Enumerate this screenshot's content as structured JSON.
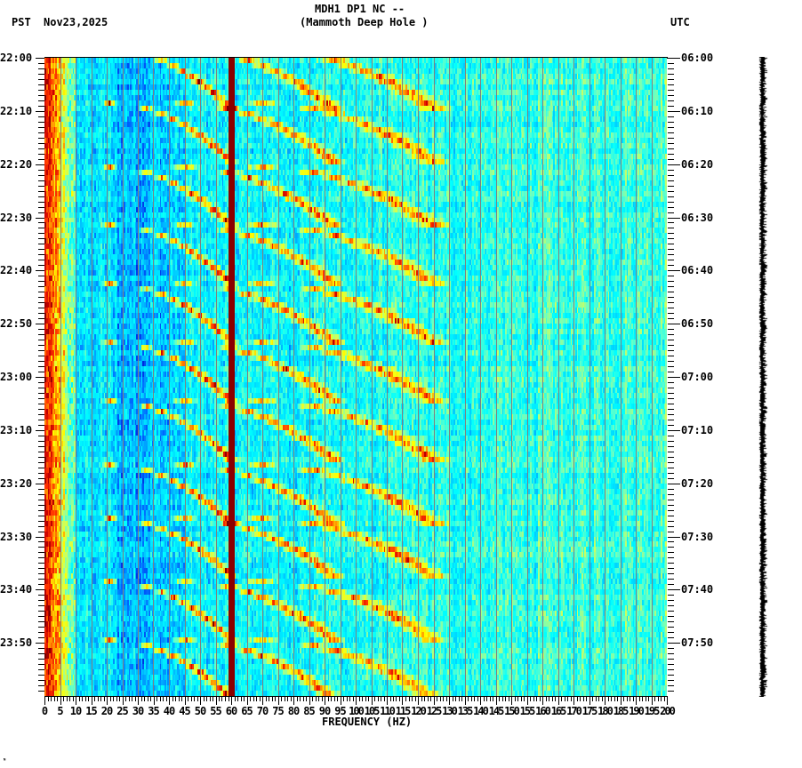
{
  "header": {
    "title_line1": "MDH1 DP1 NC --",
    "title_line2": "(Mammoth Deep Hole )",
    "left_timezone": "PST",
    "date": "Nov23,2025",
    "right_timezone": "UTC"
  },
  "footer": {
    "corner_mark": "ᴺ"
  },
  "chart_data": {
    "type": "heatmap",
    "subtype": "spectrogram",
    "title": "MDH1 DP1 NC -- (Mammoth Deep Hole )",
    "xlabel": "FREQUENCY (HZ)",
    "ylabel_left": "PST",
    "ylabel_right": "UTC",
    "date": "Nov23,2025",
    "xlim": [
      0,
      200
    ],
    "x_tick_step_major": 5,
    "x_tick_step_minor": 1,
    "x_tick_labels": [
      "0",
      "5",
      "10",
      "15",
      "20",
      "25",
      "30",
      "35",
      "40",
      "45",
      "50",
      "55",
      "60",
      "65",
      "70",
      "75",
      "80",
      "85",
      "90",
      "95",
      "100",
      "105",
      "110",
      "115",
      "120",
      "125",
      "130",
      "135",
      "140",
      "145",
      "150",
      "155",
      "160",
      "165",
      "170",
      "175",
      "180",
      "185",
      "190",
      "195",
      "200"
    ],
    "y_range_pst": [
      "22:00",
      "24:00"
    ],
    "y_range_utc": [
      "06:00",
      "08:00"
    ],
    "y_tick_labels_left": [
      "22:00",
      "22:10",
      "22:20",
      "22:30",
      "22:40",
      "22:50",
      "23:00",
      "23:10",
      "23:20",
      "23:30",
      "23:40",
      "23:50"
    ],
    "y_tick_labels_right": [
      "06:00",
      "06:10",
      "06:20",
      "06:30",
      "06:40",
      "06:50",
      "07:00",
      "07:10",
      "07:20",
      "07:30",
      "07:40",
      "07:50"
    ],
    "y_minor_tick_minutes": 1,
    "rows": 120,
    "row_minutes": 1,
    "grid": {
      "vertical_lines_every_hz": 5,
      "color": "#808080"
    },
    "colormap": [
      "#0000c8",
      "#0064ff",
      "#00c8ff",
      "#00ffff",
      "#64ffc8",
      "#c8ff64",
      "#ffff00",
      "#ffa000",
      "#ff3200",
      "#c80000",
      "#780000"
    ],
    "features": {
      "persistent_line_hz": 60,
      "persistent_line_color": "#8b0000",
      "low_frequency_band_hz": [
        0,
        10
      ],
      "low_frequency_band_intensity": "high",
      "swept_tones": {
        "description": "Repeating curved upward-sweeping harmonic arcs (fundamental sweep ~22 Hz to ~60 Hz, harmonics up to ~130 Hz)",
        "cycle_minutes": 10,
        "start_minutes": [
          -2,
          8,
          20,
          31,
          42,
          53,
          64,
          76,
          86,
          98,
          109
        ],
        "harmonic_end_hz": [
          60,
          93,
          125
        ],
        "harmonic_start_hz": [
          21,
          45,
          70
        ]
      },
      "background_level": "cyan-blue noise, greener at higher frequencies"
    }
  }
}
